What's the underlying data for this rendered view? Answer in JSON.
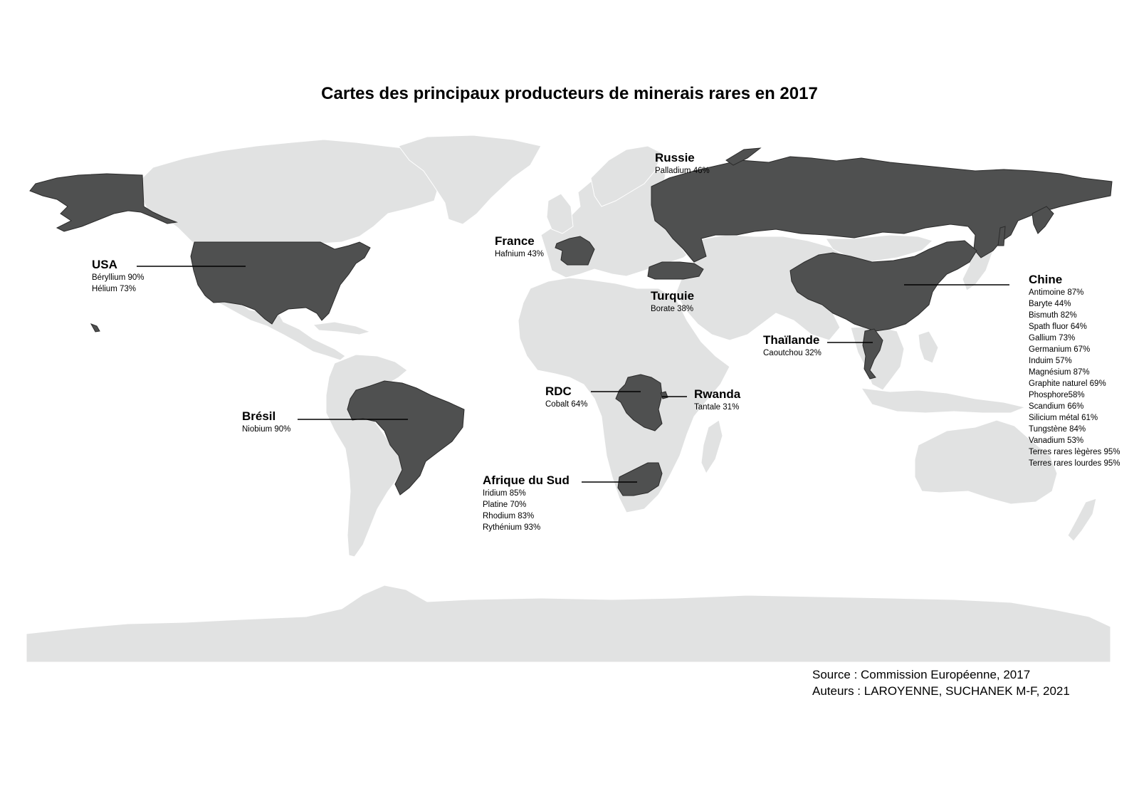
{
  "title": "Cartes des principaux producteurs de minerais rares en 2017",
  "colors": {
    "land": "#e1e2e2",
    "producer": "#4f5050",
    "background": "#ffffff"
  },
  "producers": {
    "russie": {
      "name": "Russie",
      "minerals": [
        "Palladium 46%"
      ]
    },
    "france": {
      "name": "France",
      "minerals": [
        "Hafnium 43%"
      ]
    },
    "usa": {
      "name": "USA",
      "minerals": [
        "Béryllium 90%",
        "Hélium 73%"
      ]
    },
    "turquie": {
      "name": "Turquie",
      "minerals": [
        "Borate 38%"
      ]
    },
    "chine": {
      "name": "Chine",
      "minerals": [
        "Antimoine 87%",
        "Baryte 44%",
        "Bismuth 82%",
        "Spath fluor 64%",
        "Gallium 73%",
        "Germanium 67%",
        "Induim 57%",
        "Magnésium 87%",
        "Graphite naturel 69%",
        "Phosphore58%",
        "Scandium 66%",
        "Silicium métal 61%",
        "Tungstène 84%",
        "Vanadium 53%",
        "Terres rares lègères 95%",
        "Terres rares lourdes 95%"
      ]
    },
    "thailande": {
      "name": "Thaïlande",
      "minerals": [
        "Caoutchou 32%"
      ]
    },
    "rdc": {
      "name": "RDC",
      "minerals": [
        "Cobalt 64%"
      ]
    },
    "rwanda": {
      "name": "Rwanda",
      "minerals": [
        "Tantale 31%"
      ]
    },
    "bresil": {
      "name": "Brésil",
      "minerals": [
        "Niobium 90%"
      ]
    },
    "afrique_du_sud": {
      "name": "Afrique du Sud",
      "minerals": [
        "Iridium 85%",
        "Platine 70%",
        "Rhodium 83%",
        "Rythénium 93%"
      ]
    }
  },
  "source": {
    "line1": "Source : Commission Européenne, 2017",
    "line2": "Auteurs : LAROYENNE, SUCHANEK M-F, 2021"
  }
}
